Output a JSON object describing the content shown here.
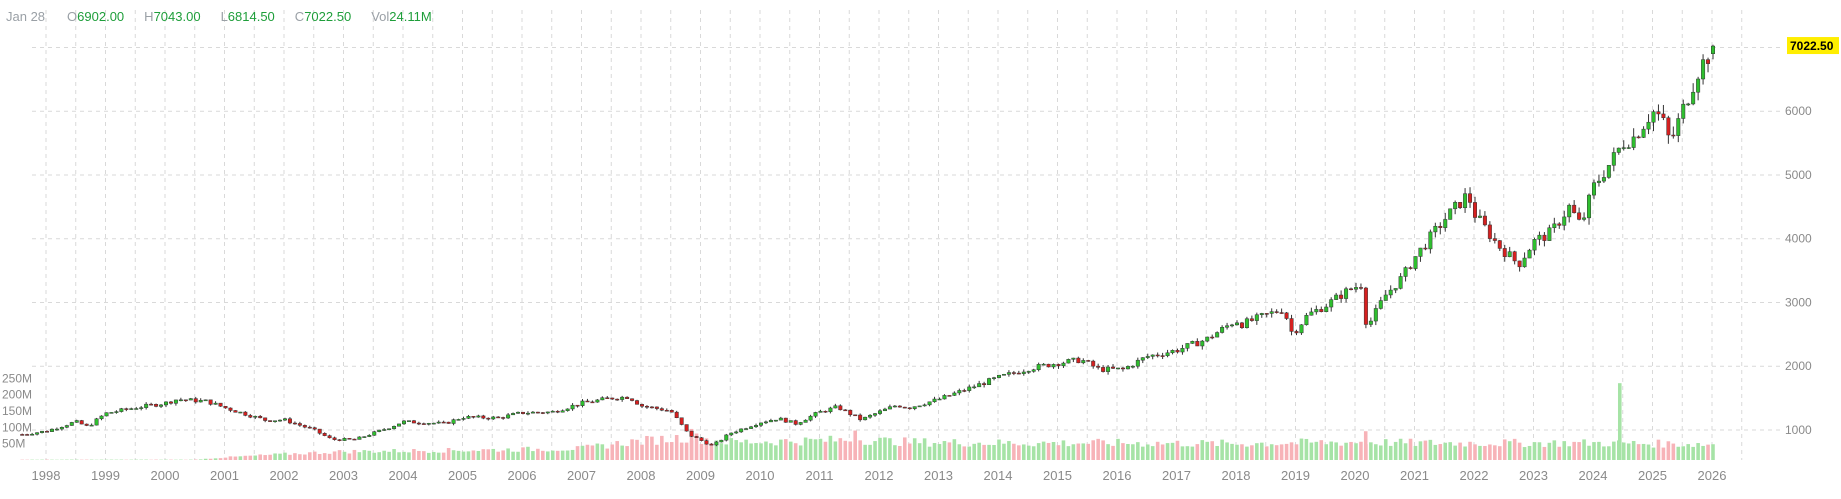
{
  "legend": {
    "date": "Jan 28",
    "open_key": "O",
    "open": "6902.00",
    "high_key": "H",
    "high": "7043.00",
    "low_key": "L",
    "low": "6814.50",
    "close_key": "C",
    "close": "7022.50",
    "vol_key": "Vol",
    "vol": "24.11M"
  },
  "colors": {
    "up": "#2fbf2f",
    "down": "#d62020",
    "vol_up": "#a6e3a6",
    "vol_down": "#f7b3b8",
    "grid": "#d9d9d9",
    "axis_text": "#8a8a8a",
    "last_price_bg": "#ffee00"
  },
  "chart_data": {
    "type": "candlestick",
    "title": "",
    "xlabel": "",
    "ylabel": "",
    "x_ticks": [
      "1998",
      "1999",
      "2000",
      "2001",
      "2002",
      "2003",
      "2004",
      "2005",
      "2006",
      "2007",
      "2008",
      "2009",
      "2010",
      "2011",
      "2012",
      "2013",
      "2014",
      "2015",
      "2016",
      "2017",
      "2018",
      "2019",
      "2020",
      "2021",
      "2022",
      "2023",
      "2024",
      "2025",
      "2026"
    ],
    "y_ticks": [
      1000,
      2000,
      3000,
      4000,
      5000,
      6000
    ],
    "y_tick_labels": [
      "1000",
      "2000",
      "3000",
      "4000",
      "5000",
      "6000"
    ],
    "ylim": [
      560,
      7180
    ],
    "vol_ticks": [
      50,
      100,
      150,
      200,
      250
    ],
    "vol_tick_labels": [
      "50M",
      "100M",
      "150M",
      "200M",
      "250M"
    ],
    "vol_ylim": [
      0,
      260
    ],
    "last_price": 7022.5,
    "last_price_label": "7022.50",
    "grid": true,
    "price_path_years": [
      1997.6,
      1998.0,
      1998.5,
      1998.7,
      1999.0,
      1999.5,
      2000.0,
      2000.2,
      2000.7,
      2001.0,
      2001.7,
      2002.0,
      2002.5,
      2002.8,
      2003.2,
      2003.8,
      2004.0,
      2004.7,
      2005.0,
      2005.6,
      2006.0,
      2006.5,
      2007.0,
      2007.5,
      2007.8,
      2008.0,
      2008.5,
      2008.8,
      2009.2,
      2009.5,
      2010.0,
      2010.3,
      2010.6,
      2011.0,
      2011.3,
      2011.7,
      2012.0,
      2012.3,
      2012.5,
      2013.0,
      2013.5,
      2014.0,
      2014.5,
      2015.0,
      2015.4,
      2015.7,
      2016.1,
      2016.5,
      2017.0,
      2017.5,
      2018.0,
      2018.1,
      2018.5,
      2018.8,
      2018.95,
      2019.2,
      2019.5,
      2019.9,
      2020.1,
      2020.2,
      2020.5,
      2020.8,
      2021.0,
      2021.5,
      2021.9,
      2022.0,
      2022.4,
      2022.75,
      2023.0,
      2023.3,
      2023.6,
      2023.8,
      2024.0,
      2024.3,
      2024.5,
      2024.7,
      2025.0,
      2025.15,
      2025.3,
      2025.5,
      2025.8,
      2026.07
    ],
    "price_path_values": [
      930,
      980,
      1130,
      1050,
      1260,
      1350,
      1420,
      1480,
      1450,
      1350,
      1150,
      1160,
      1000,
      850,
      850,
      1050,
      1130,
      1100,
      1200,
      1190,
      1270,
      1280,
      1420,
      1500,
      1520,
      1380,
      1300,
      930,
      750,
      950,
      1120,
      1180,
      1100,
      1280,
      1360,
      1160,
      1280,
      1390,
      1350,
      1480,
      1650,
      1820,
      1960,
      2050,
      2100,
      1950,
      1950,
      2150,
      2250,
      2420,
      2720,
      2660,
      2800,
      2900,
      2500,
      2800,
      2950,
      3200,
      3280,
      2600,
      3100,
      3400,
      3700,
      4300,
      4700,
      4400,
      3900,
      3600,
      3950,
      4100,
      4500,
      4200,
      4800,
      5200,
      5500,
      5600,
      6000,
      5900,
      5500,
      6000,
      6700,
      7022.5
    ],
    "volume_path_years": [
      1997.6,
      2000.5,
      2001.0,
      2002.0,
      2003.0,
      2005.0,
      2007.0,
      2007.8,
      2008.8,
      2009.5,
      2010.5,
      2011.7,
      2012.5,
      2014.0,
      2016.0,
      2018.0,
      2020.1,
      2021.0,
      2024.0,
      2026.07
    ],
    "volume_path_values": [
      1,
      1,
      8,
      18,
      26,
      30,
      35,
      55,
      70,
      55,
      58,
      62,
      55,
      52,
      52,
      50,
      55,
      52,
      52,
      48
    ],
    "volume_spikes": [
      {
        "year": 2024.45,
        "value": 235
      },
      {
        "year": 2011.6,
        "value": 90
      },
      {
        "year": 2020.18,
        "value": 88
      },
      {
        "year": 2008.85,
        "value": 95
      }
    ]
  }
}
